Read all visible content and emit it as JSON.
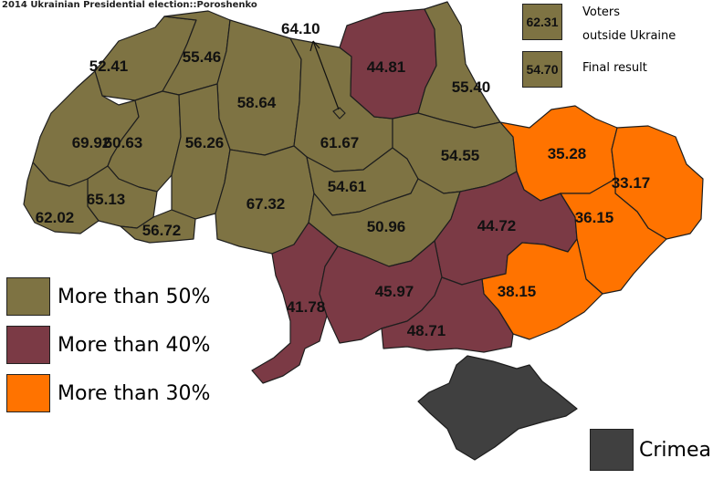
{
  "title": "2014 Ukrainian Presidential election::Poroshenko",
  "colors": {
    "over50": "#7e7343",
    "over40": "#7b3a45",
    "over30": "#ff7300",
    "crimea": "#404040",
    "border": "#1e1e1e"
  },
  "regions": [
    {
      "name": "volyn",
      "value": "52.41",
      "category": "over50"
    },
    {
      "name": "rivne",
      "value": "55.46",
      "category": "over50"
    },
    {
      "name": "zhytomyr",
      "value": "58.64",
      "category": "over50"
    },
    {
      "name": "kyiv-oblast",
      "value": "61.67",
      "category": "over50"
    },
    {
      "name": "kyiv-city",
      "value": "64.10",
      "category": "over50"
    },
    {
      "name": "chernihiv",
      "value": "44.81",
      "category": "over40"
    },
    {
      "name": "sumy",
      "value": "55.40",
      "category": "over50"
    },
    {
      "name": "lviv",
      "value": "69.92",
      "category": "over50"
    },
    {
      "name": "ternopil",
      "value": "60.63",
      "category": "over50"
    },
    {
      "name": "khmelnytskyi",
      "value": "56.26",
      "category": "over50"
    },
    {
      "name": "ivano-frankivsk",
      "value": "65.13",
      "category": "over50"
    },
    {
      "name": "zakarpattia",
      "value": "62.02",
      "category": "over50"
    },
    {
      "name": "chernivtsi",
      "value": "56.72",
      "category": "over50"
    },
    {
      "name": "vinnytsia",
      "value": "67.32",
      "category": "over50"
    },
    {
      "name": "cherkasy",
      "value": "54.61",
      "category": "over50"
    },
    {
      "name": "poltava",
      "value": "54.55",
      "category": "over50"
    },
    {
      "name": "kirovohrad",
      "value": "50.96",
      "category": "over50"
    },
    {
      "name": "kharkiv",
      "value": "35.28",
      "category": "over30"
    },
    {
      "name": "luhansk",
      "value": "33.17",
      "category": "over30"
    },
    {
      "name": "dnipropetrovsk",
      "value": "44.72",
      "category": "over40"
    },
    {
      "name": "donetsk",
      "value": "36.15",
      "category": "over30"
    },
    {
      "name": "zaporizhzhia",
      "value": "38.15",
      "category": "over30"
    },
    {
      "name": "odesa",
      "value": "41.78",
      "category": "over40"
    },
    {
      "name": "mykolaiv",
      "value": "45.97",
      "category": "over40"
    },
    {
      "name": "kherson",
      "value": "48.71",
      "category": "over40"
    },
    {
      "name": "crimea",
      "value": "",
      "category": "crimea"
    }
  ],
  "info_boxes": [
    {
      "value": "62.31",
      "label_line1": "Voters",
      "label_line2": "outside Ukraine"
    },
    {
      "value": "54.70",
      "label_line1": "Final result",
      "label_line2": ""
    }
  ],
  "legend": [
    {
      "label": "More than 50%",
      "category": "over50"
    },
    {
      "label": "More than 40%",
      "category": "over40"
    },
    {
      "label": "More than 30%",
      "category": "over30"
    }
  ],
  "crimea_legend": {
    "label": "Crimea",
    "category": "crimea"
  }
}
